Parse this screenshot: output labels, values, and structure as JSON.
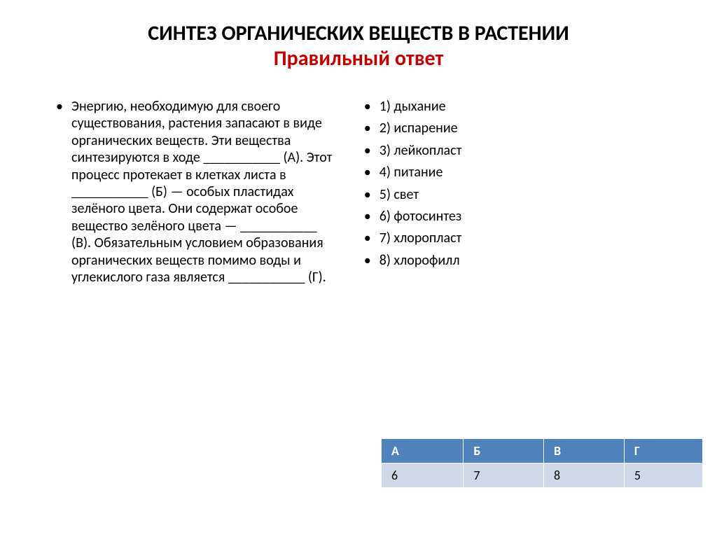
{
  "title": {
    "main": "СИНТЕЗ ОРГАНИЧЕСКИХ ВЕЩЕСТВ В РАСТЕНИИ",
    "sub": "Правильный ответ",
    "main_color": "#000000",
    "sub_color": "#c00000",
    "fontsize": 30
  },
  "left_bullet": "Энергию, необходимую для своего существования, растения запасают в виде органических веществ. Эти вещества синтезируются в ходе ___________ (А). Этот процесс протекает в клетках листа в ___________ (Б) — особых пластидах зелёного цвета. Они содержат особое вещество зелёного цвета — ___________ (В). Обязательным условием образования органических веществ помимо воды и углекислого газа является ___________ (Г).",
  "right_bullets": [
    "1) дыхание",
    "2) испарение",
    "3) лейкопласт",
    "4) питание",
    "5) свет",
    "6) фотосинтез",
    "7) хлоропласт",
    "8) хлорофилл"
  ],
  "answer_table": {
    "header_bg": "#4f81bd",
    "header_color": "#ffffff",
    "row_bg": "#d0d8e8",
    "row_color": "#000000",
    "columns": [
      "А",
      "Б",
      "В",
      "Г"
    ],
    "row": [
      "6",
      "7",
      "8",
      "5"
    ]
  },
  "body_fontsize": 20,
  "background": "#ffffff"
}
